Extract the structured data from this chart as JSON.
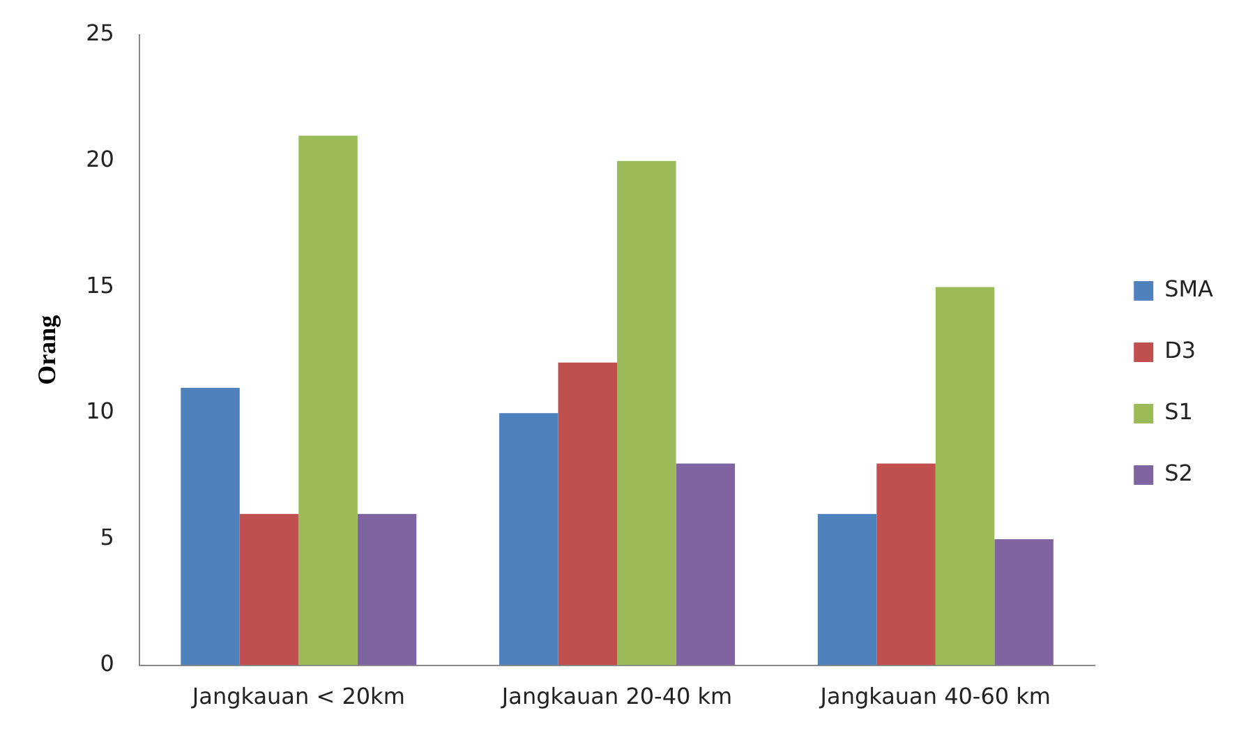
{
  "chart_data": {
    "type": "bar",
    "ylabel": "Orang",
    "categories": [
      "Jangkauan < 20km",
      "Jangkauan 20-40 km",
      "Jangkauan 40-60 km"
    ],
    "series": [
      {
        "name": "SMA",
        "color": "#4f81bd",
        "values": [
          11,
          10,
          6
        ]
      },
      {
        "name": "D3",
        "color": "#c0504d",
        "values": [
          6,
          12,
          8
        ]
      },
      {
        "name": "S1",
        "color": "#9bbb59",
        "values": [
          21,
          20,
          15
        ]
      },
      {
        "name": "S2",
        "color": "#8064a2",
        "values": [
          6,
          8,
          5
        ]
      }
    ],
    "ylim": [
      0,
      25
    ],
    "yticks": [
      0,
      5,
      10,
      15,
      20,
      25
    ],
    "grid": false,
    "legend": "right"
  }
}
